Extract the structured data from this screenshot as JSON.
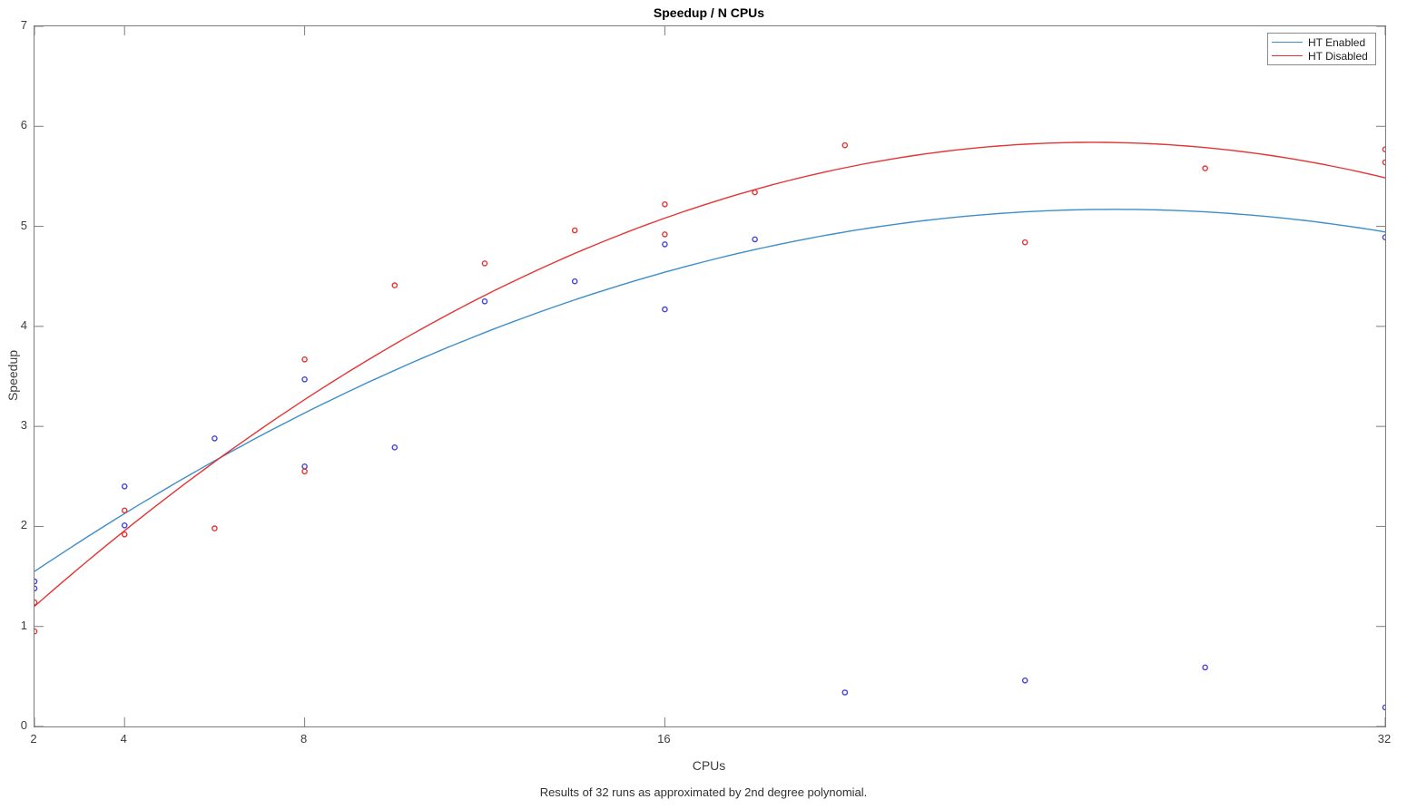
{
  "title": "Speedup / N CPUs",
  "xlabel": "CPUs",
  "ylabel": "Speedup",
  "caption": "Results of 32 runs as approximated by 2nd degree polynomial.",
  "legend": {
    "items": [
      {
        "label": "HT Enabled",
        "color": "#3d8ec9"
      },
      {
        "label": "HT Disabled",
        "color": "#e43434"
      }
    ]
  },
  "colors": {
    "axis": "#7c7c7c",
    "tick_text": "#3c3c3c",
    "blue_line": "#3d8ec9",
    "blue_marker": "#4343d9",
    "red_line": "#e43434",
    "red_marker": "#e43434"
  },
  "chart_data": {
    "type": "scatter",
    "title": "Speedup / N CPUs",
    "xlabel": "CPUs",
    "ylabel": "Speedup",
    "xlim": [
      2,
      32
    ],
    "ylim": [
      0,
      7
    ],
    "x_scale": "linear",
    "grid": false,
    "legend_position": "top-right",
    "x_ticks": [
      2,
      4,
      8,
      16,
      32
    ],
    "y_ticks": [
      0,
      1,
      2,
      3,
      4,
      5,
      6,
      7
    ],
    "series": [
      {
        "name": "HT Enabled",
        "line_color": "#3d8ec9",
        "marker_color": "#4343d9",
        "fit": {
          "type": "poly2",
          "a": -0.006285,
          "b": 0.32682,
          "c": 0.92134
        },
        "fit_note": "2nd degree polynomial, peak ~5.17 at x~26, ends (2,1.55) and (32,4.94)",
        "points": [
          [
            2,
            1.45
          ],
          [
            2,
            1.38
          ],
          [
            4,
            2.4
          ],
          [
            4,
            2.01
          ],
          [
            6,
            2.88
          ],
          [
            8,
            3.47
          ],
          [
            8,
            2.6
          ],
          [
            10,
            2.79
          ],
          [
            12,
            4.25
          ],
          [
            14,
            4.45
          ],
          [
            16,
            4.82
          ],
          [
            16,
            4.17
          ],
          [
            18,
            4.87
          ],
          [
            20,
            0.34
          ],
          [
            24,
            0.46
          ],
          [
            28,
            0.59
          ],
          [
            32,
            4.89
          ],
          [
            32,
            0.19
          ]
        ]
      },
      {
        "name": "HT Disabled",
        "line_color": "#e43434",
        "marker_color": "#e43434",
        "fit": {
          "type": "poly2",
          "a": -0.0084,
          "b": 0.4284,
          "c": 0.3779
        },
        "fit_note": "2nd degree polynomial, peak ~5.84 at x~25.5, ends (2,1.20) and (32,5.49)",
        "points": [
          [
            2,
            1.24
          ],
          [
            2,
            0.95
          ],
          [
            4,
            2.16
          ],
          [
            4,
            1.92
          ],
          [
            6,
            1.98
          ],
          [
            8,
            3.67
          ],
          [
            8,
            2.55
          ],
          [
            10,
            4.41
          ],
          [
            12,
            4.63
          ],
          [
            14,
            4.96
          ],
          [
            16,
            5.22
          ],
          [
            16,
            4.92
          ],
          [
            18,
            5.34
          ],
          [
            20,
            5.81
          ],
          [
            24,
            4.84
          ],
          [
            28,
            5.58
          ],
          [
            32,
            5.77
          ],
          [
            32,
            5.64
          ]
        ]
      }
    ]
  }
}
